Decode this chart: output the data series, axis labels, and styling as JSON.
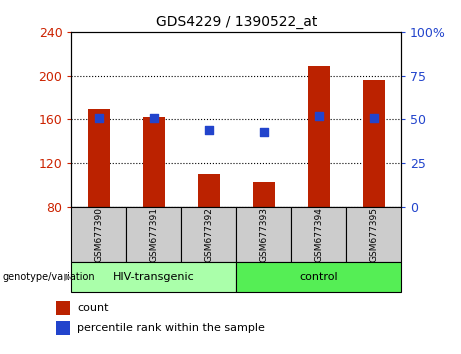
{
  "title": "GDS4229 / 1390522_at",
  "categories": [
    "GSM677390",
    "GSM677391",
    "GSM677392",
    "GSM677393",
    "GSM677394",
    "GSM677395"
  ],
  "count_values": [
    170,
    162,
    110,
    103,
    209,
    196
  ],
  "percentile_values": [
    51,
    51,
    44,
    43,
    52,
    51
  ],
  "ylim_left": [
    80,
    240
  ],
  "ylim_right": [
    0,
    100
  ],
  "yticks_left": [
    80,
    120,
    160,
    200,
    240
  ],
  "yticks_right": [
    0,
    25,
    50,
    75,
    100
  ],
  "bar_bottom": 80,
  "bar_color": "#bb2200",
  "dot_color": "#2244cc",
  "group1_label": "HIV-transgenic",
  "group2_label": "control",
  "group1_indices": [
    0,
    1,
    2
  ],
  "group2_indices": [
    3,
    4,
    5
  ],
  "group1_color": "#aaffaa",
  "group2_color": "#55ee55",
  "genotype_label": "genotype/variation",
  "legend_count": "count",
  "legend_percentile": "percentile rank within the sample",
  "bar_width": 0.4,
  "dot_size": 35,
  "left_axis_color": "#cc2200",
  "right_axis_color": "#2244cc",
  "tick_fontsize": 9,
  "title_fontsize": 10
}
